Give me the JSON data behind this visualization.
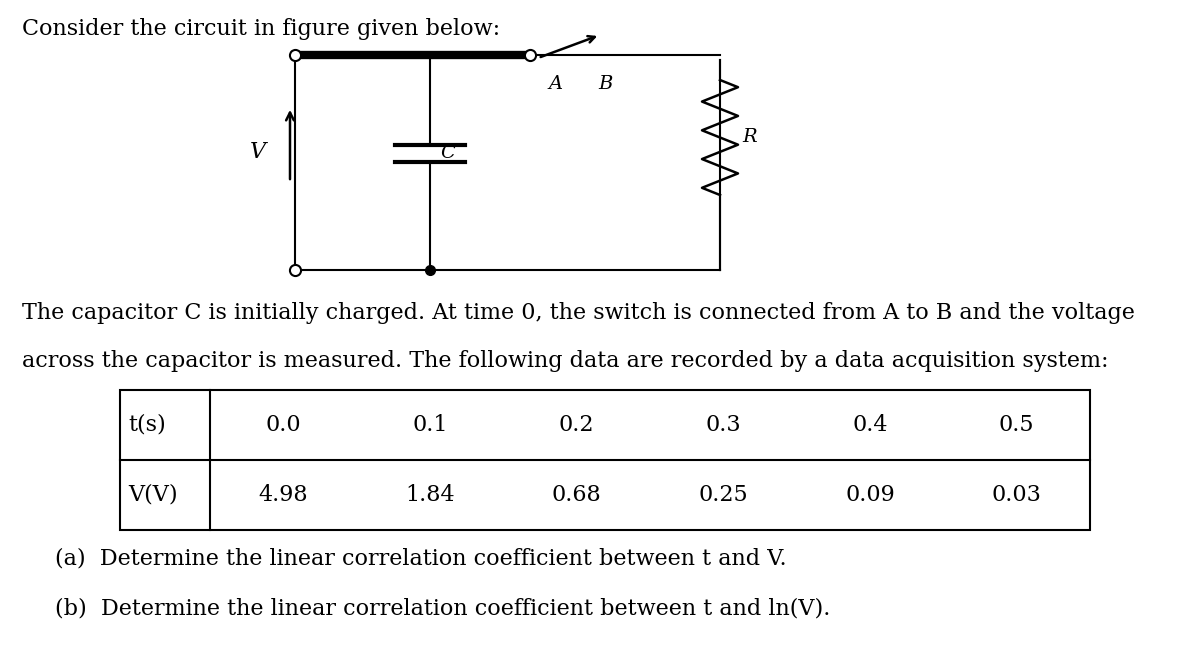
{
  "title_text": "Consider the circuit in figure given below:",
  "paragraph1": "The capacitor C is initially charged. At time 0, the switch is connected from A to B and the voltage",
  "paragraph2": "across the capacitor is measured. The following data are recorded by a data acquisition system:",
  "t_label": "t(s)",
  "v_label": "V(V)",
  "t_values": [
    "0.0",
    "0.1",
    "0.2",
    "0.3",
    "0.4",
    "0.5"
  ],
  "v_values": [
    "4.98",
    "1.84",
    "0.68",
    "0.25",
    "0.09",
    "0.03"
  ],
  "question_a": "(a)  Determine the linear correlation coefficient between t and V.",
  "question_b": "(b)  Determine the linear correlation coefficient between t and ln(V).",
  "bg_color": "#ffffff",
  "text_color": "#000000",
  "font_size": 16
}
